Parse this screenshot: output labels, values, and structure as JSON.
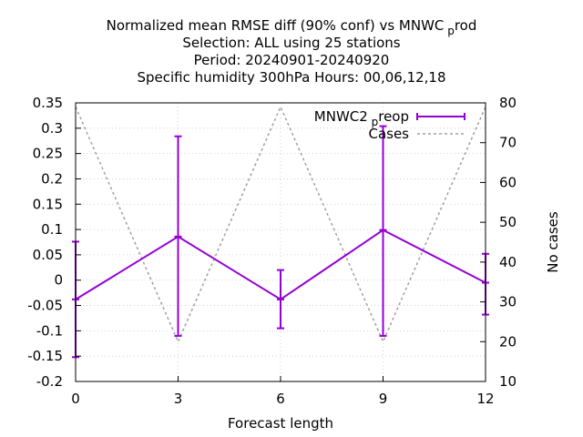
{
  "chart_data": {
    "type": "line",
    "title_lines": [
      {
        "text": "Normalized mean RMSE diff (90% conf) vs MNWC",
        "sub": "p",
        "after": "rod"
      },
      {
        "text": "Selection: ALL using    25 stations"
      },
      {
        "text": "Period: 20240901-20240920"
      },
      {
        "text": "Specific humidity 300hPa   Hours:  00,06,12,18"
      }
    ],
    "xlabel": "Forecast length",
    "ylabel_right": "No cases",
    "xlim": [
      0,
      12
    ],
    "ylim": [
      -0.2,
      0.35
    ],
    "y2lim": [
      10,
      80
    ],
    "x_ticks": [
      0,
      3,
      6,
      9,
      12
    ],
    "y_ticks": [
      "-0.2",
      "-0.15",
      "-0.1",
      "-0.05",
      "0",
      "0.05",
      "0.1",
      "0.15",
      "0.2",
      "0.25",
      "0.3",
      "0.35"
    ],
    "y2_ticks": [
      10,
      20,
      30,
      40,
      50,
      60,
      70,
      80
    ],
    "grid": true,
    "legend_position": "top-right",
    "series": [
      {
        "name": "MNWC2",
        "name_sub": "p",
        "name_after": "reop",
        "color": "#9400d3",
        "axis": "left",
        "x": [
          0,
          3,
          6,
          9,
          12
        ],
        "y": [
          -0.038,
          0.086,
          -0.038,
          0.099,
          -0.005
        ],
        "err_low": [
          -0.152,
          -0.11,
          -0.095,
          -0.11,
          -0.068
        ],
        "err_high": [
          0.076,
          0.284,
          0.02,
          0.304,
          0.052
        ]
      },
      {
        "name": "Cases",
        "color": "#a0a0a0",
        "axis": "right",
        "dashed": true,
        "x": [
          0,
          3,
          6,
          9,
          12
        ],
        "y": [
          79,
          20,
          79,
          20,
          79
        ]
      }
    ]
  }
}
